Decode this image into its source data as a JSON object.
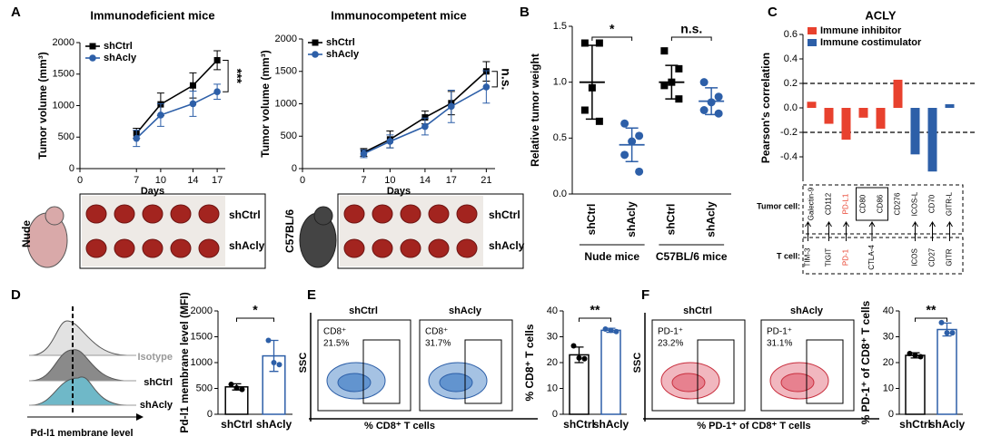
{
  "figure": {
    "letters": [
      "A",
      "B",
      "C",
      "D",
      "E",
      "F"
    ],
    "a_photos": [
      "Nude",
      "shCtrl",
      "shAcly",
      "C57BL/6",
      "shCtrl",
      "shAcly"
    ],
    "c_rows": [
      "Tumor cell:",
      "T cell:"
    ],
    "c_t_genes": [
      "TIM-3",
      "TIGIT",
      "PD-1",
      "CTLA-4",
      "ICOS",
      "CD27",
      "GITR"
    ],
    "c_t_gene_colors": [
      "#000000",
      "#000000",
      "#e8412e",
      "#000000",
      "#000000",
      "#000000",
      "#000000"
    ],
    "d_hist": [
      "Isotype",
      "shCtrl",
      "shAcly",
      "Pd-l1 membrane level"
    ],
    "e_flow": {
      "samples": [
        "shCtrl",
        "shAcly"
      ],
      "gate": "CD8⁺",
      "percents": [
        "21.5%",
        "31.7%"
      ],
      "yaxis": "SSC",
      "xaxis": "% CD8⁺ T cells"
    },
    "f_flow": {
      "samples": [
        "shCtrl",
        "shAcly"
      ],
      "gate": "PD-1⁺",
      "percents": [
        "23.2%",
        "31.1%"
      ],
      "yaxis": "SSC",
      "xaxis": "% PD-1⁺ of CD8⁺ T cells"
    }
  },
  "chart_data": [
    {
      "type": "line",
      "title": "Immunodeficient mice",
      "ylabel": "Tumor volume (mm³)",
      "xlabel": "Days",
      "x": [
        7,
        10,
        14,
        17
      ],
      "xlim": [
        0,
        18
      ],
      "xticks": [
        0,
        7,
        10,
        14,
        17
      ],
      "ylim": [
        0,
        2000
      ],
      "yticks": [
        0,
        500,
        1000,
        1500,
        2000
      ],
      "series": [
        {
          "name": "shCtrl",
          "color": "#000000",
          "marker": "square",
          "values": [
            560,
            1020,
            1320,
            1720
          ],
          "errors": [
            80,
            180,
            200,
            150
          ]
        },
        {
          "name": "shAcly",
          "color": "#2d5fa8",
          "marker": "circle",
          "values": [
            480,
            850,
            1030,
            1220
          ],
          "errors": [
            130,
            180,
            200,
            120
          ]
        }
      ],
      "annotations": [
        "***"
      ]
    },
    {
      "type": "line",
      "title": "Immunocompetent mice",
      "ylabel": "Tumor volume (mm³)",
      "xlabel": "Days",
      "x": [
        7,
        10,
        14,
        17,
        21
      ],
      "xlim": [
        0,
        22
      ],
      "xticks": [
        0,
        7,
        10,
        14,
        17,
        21
      ],
      "ylim": [
        0,
        2000
      ],
      "yticks": [
        0,
        500,
        1000,
        1500,
        2000
      ],
      "series": [
        {
          "name": "shCtrl",
          "color": "#000000",
          "marker": "square",
          "values": [
            250,
            450,
            790,
            1010,
            1500
          ],
          "errors": [
            60,
            130,
            100,
            180,
            150
          ]
        },
        {
          "name": "shAcly",
          "color": "#2d5fa8",
          "marker": "circle",
          "values": [
            230,
            420,
            650,
            960,
            1260
          ],
          "errors": [
            60,
            100,
            130,
            250,
            250
          ]
        }
      ],
      "annotations": [
        "n.s."
      ]
    },
    {
      "type": "dot",
      "ylabel": "Relative tumor weight",
      "ylim": [
        0,
        1.5
      ],
      "yticks": [
        {
          "value": 0,
          "label": "0.0"
        },
        0.5,
        {
          "value": 1,
          "label": "1.0"
        },
        1.5
      ],
      "categories": [
        "shCtrl",
        "shAcly",
        "shCtrl",
        "shAcly"
      ],
      "groups": [
        "Nude mice",
        "C57BL/6 mice"
      ],
      "colors": [
        "#000000",
        "#2d5fa8",
        "#000000",
        "#2d5fa8"
      ],
      "points": [
        [
          1.35,
          1.35,
          0.95,
          0.75,
          0.65
        ],
        [
          0.63,
          0.52,
          0.47,
          0.35,
          0.2
        ],
        [
          1.28,
          1.12,
          1.0,
          0.97,
          0.85
        ],
        [
          1.0,
          0.87,
          0.82,
          0.75,
          0.72
        ]
      ],
      "means": [
        1.0,
        0.44,
        1.0,
        0.83
      ],
      "sds": [
        0.33,
        0.15,
        0.15,
        0.12
      ],
      "annotations": [
        "*",
        "n.s."
      ]
    },
    {
      "type": "bar",
      "title": "ACLY",
      "ylabel": "Pearson's correlation",
      "ylim": [
        -0.6,
        0.6
      ],
      "yticks": [
        -0.4,
        -0.2,
        {
          "value": 0,
          "label": "0.0"
        },
        0.2,
        0.4,
        0.6
      ],
      "categories": [
        "Galectin-9",
        "CD112",
        "PD-L1",
        "CD80",
        "CD86",
        "CD276",
        "ICOS-L",
        "CD70",
        "GITR-L"
      ],
      "label_colors": [
        "#000000",
        "#000000",
        "#e8412e",
        "#000000",
        "#000000",
        "#000000",
        "#000000",
        "#000000",
        "#000000"
      ],
      "series": [
        {
          "name": "Immune inhibitor",
          "color": "#e8412e",
          "values": [
            0.05,
            -0.13,
            -0.26,
            -0.08,
            -0.17,
            0.23,
            null,
            null,
            null
          ]
        },
        {
          "name": "Immune costimulator",
          "color": "#2d5fa8",
          "values": [
            null,
            null,
            null,
            null,
            null,
            null,
            -0.38,
            -0.52,
            0.03
          ]
        }
      ],
      "hlines": [
        0.2,
        -0.2
      ]
    },
    {
      "type": "bar",
      "ylabel": "Pd-l1 membrane level (MFI)",
      "categories": [
        "shCtrl",
        "shAcly"
      ],
      "colors": [
        "#000000",
        "#2d5fa8"
      ],
      "values": [
        530,
        1130
      ],
      "errors": [
        60,
        300
      ],
      "points": [
        [
          580,
          510,
          480
        ],
        [
          1430,
          1000,
          960
        ]
      ],
      "ylim": [
        0,
        2000
      ],
      "yticks": [
        0,
        500,
        1000,
        1500,
        2000
      ],
      "annotations": [
        "*"
      ]
    },
    {
      "type": "bar",
      "ylabel": "% CD8⁺ T cells",
      "categories": [
        "shCtrl",
        "shAcly"
      ],
      "colors": [
        "#000000",
        "#2d5fa8"
      ],
      "values": [
        23,
        32.5
      ],
      "errors": [
        3,
        0.8
      ],
      "points": [
        [
          26.5,
          21.8,
          21.5
        ],
        [
          33,
          32.5,
          32
        ]
      ],
      "ylim": [
        0,
        40
      ],
      "yticks": [
        0,
        10,
        20,
        30,
        40
      ],
      "annotations": [
        "**"
      ]
    },
    {
      "type": "bar",
      "ylabel": "% PD-1⁺ of CD8⁺ T cells",
      "categories": [
        "shCtrl",
        "shAcly"
      ],
      "colors": [
        "#000000",
        "#2d5fa8"
      ],
      "values": [
        22.8,
        32.8
      ],
      "errors": [
        1,
        2.5
      ],
      "points": [
        [
          23.5,
          22.8,
          22.3
        ],
        [
          35.5,
          31.5,
          31.5
        ]
      ],
      "ylim": [
        0,
        40
      ],
      "yticks": [
        0,
        10,
        20,
        30,
        40
      ],
      "annotations": [
        "**"
      ]
    }
  ]
}
